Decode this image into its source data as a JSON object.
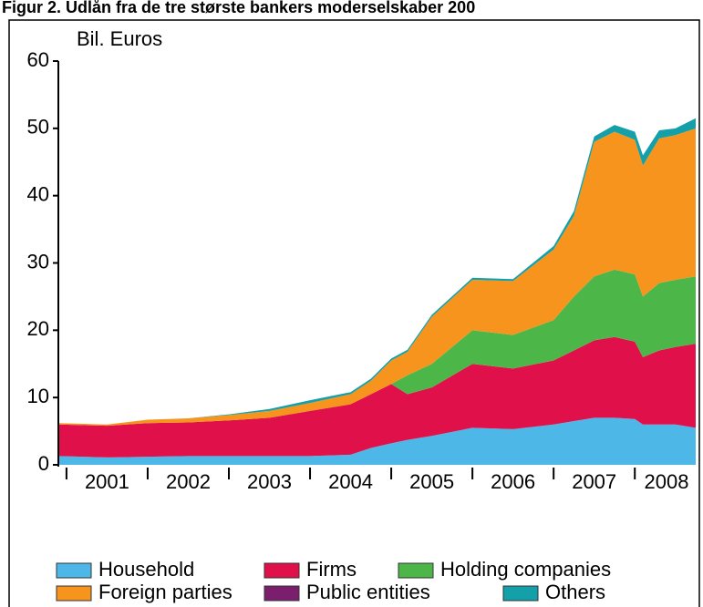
{
  "chart_data": {
    "type": "stacked_area",
    "title": "Figur 2. Udlån fra de tre største bankers moderselskaber 200",
    "ylabel": "Bil. Euros",
    "x": [
      2000.9,
      2001.5,
      2002.0,
      2002.5,
      2003.0,
      2003.5,
      2004.0,
      2004.5,
      2004.75,
      2005.0,
      2005.2,
      2005.5,
      2006.0,
      2006.5,
      2007.0,
      2007.25,
      2007.5,
      2007.75,
      2008.0,
      2008.1,
      2008.3,
      2008.5,
      2008.75
    ],
    "xlim": [
      2000.9,
      2008.75
    ],
    "xticks": [
      2001,
      2002,
      2003,
      2004,
      2005,
      2006,
      2007,
      2008
    ],
    "categories": [
      "2001",
      "2002",
      "2003",
      "2004",
      "2005",
      "2006",
      "2007",
      "2008"
    ],
    "ylim": [
      0,
      60
    ],
    "yticks": [
      0,
      10,
      20,
      30,
      40,
      50,
      60
    ],
    "series": [
      {
        "name": "Household",
        "color": "#4db8e8",
        "values": [
          1.3,
          1.1,
          1.2,
          1.3,
          1.3,
          1.3,
          1.3,
          1.5,
          2.5,
          3.2,
          3.7,
          4.3,
          5.5,
          5.3,
          6,
          6.5,
          7,
          7,
          6.8,
          6,
          6,
          6,
          5.5
        ]
      },
      {
        "name": "Firms",
        "color": "#e0104a",
        "values": [
          4.7,
          4.7,
          5.0,
          5.0,
          5.3,
          5.7,
          6.7,
          7.5,
          8,
          8.8,
          6.8,
          7.2,
          9.5,
          9,
          9.5,
          10.5,
          11.5,
          12,
          11.5,
          10,
          11,
          11.5,
          12.5
        ]
      },
      {
        "name": "Holding companies",
        "color": "#4cb748",
        "values": [
          0,
          0,
          0,
          0,
          0,
          0,
          0,
          0,
          0,
          0,
          2.8,
          3.5,
          5,
          5,
          6,
          8,
          9.5,
          10,
          10,
          9,
          10,
          10,
          10
        ]
      },
      {
        "name": "Foreign parties",
        "color": "#f7941d",
        "values": [
          0.2,
          0.2,
          0.5,
          0.6,
          0.8,
          1.0,
          1.2,
          1.5,
          2,
          3.5,
          3.5,
          7,
          7.5,
          8,
          10.5,
          12,
          20,
          20.5,
          20,
          19.5,
          21.5,
          21.5,
          22
        ]
      },
      {
        "name": "Public entities",
        "color": "#7b1e6e",
        "values": [
          0,
          0,
          0,
          0,
          0,
          0,
          0,
          0,
          0,
          0,
          0,
          0,
          0,
          0,
          0,
          0,
          0,
          0,
          0,
          0,
          0,
          0,
          0
        ]
      },
      {
        "name": "Others",
        "color": "#13a0a8",
        "values": [
          0,
          0,
          0,
          0,
          0.1,
          0.3,
          0.4,
          0.3,
          0.3,
          0.3,
          0.3,
          0.3,
          0.3,
          0.3,
          0.5,
          0.7,
          0.8,
          1,
          1.2,
          1.5,
          1.2,
          1,
          1.5
        ]
      }
    ]
  }
}
